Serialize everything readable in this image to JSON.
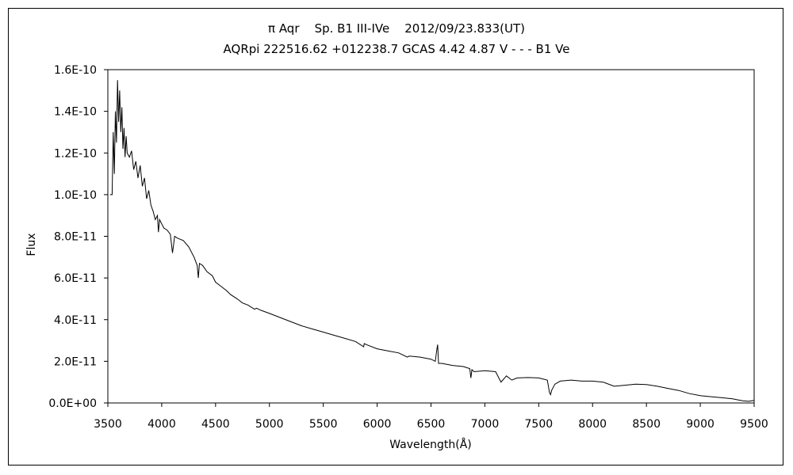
{
  "chart_data": {
    "type": "line",
    "title": "π Aqr    Sp. B1 III-IVe    2012/09/23.833(UT)",
    "subtitle": "AQRpi 222516.62 +012238.7 GCAS 4.42 4.87 V - - - B1 Ve",
    "xlabel": "Wavelength(Å)",
    "ylabel": "Flux",
    "xlim": [
      3500,
      9500
    ],
    "ylim": [
      0,
      1.6e-10
    ],
    "x_ticks": [
      "3500",
      "4000",
      "4500",
      "5000",
      "5500",
      "6000",
      "6500",
      "7000",
      "7500",
      "8000",
      "8500",
      "9000",
      "9500"
    ],
    "y_ticks": [
      "0.0E+00",
      "2.0E-11",
      "4.0E-11",
      "6.0E-11",
      "8.0E-11",
      "1.0E-10",
      "1.2E-10",
      "1.4E-10",
      "1.6E-10"
    ],
    "grid": false,
    "legend": "none",
    "line_color": "#000000",
    "series": [
      {
        "x": [
          3520,
          3540,
          3550,
          3560,
          3570,
          3580,
          3590,
          3600,
          3610,
          3620,
          3630,
          3640,
          3650,
          3660,
          3670,
          3680,
          3700,
          3720,
          3740,
          3760,
          3780,
          3800,
          3820,
          3840,
          3860,
          3880,
          3900,
          3920,
          3940,
          3960,
          3970,
          3980,
          4000,
          4020,
          4050,
          4080,
          4100,
          4110,
          4120,
          4150,
          4200,
          4250,
          4300,
          4330,
          4340,
          4350,
          4380,
          4420,
          4471,
          4500,
          4550,
          4600,
          4640,
          4700,
          4750,
          4800,
          4861,
          4880,
          4920,
          5000,
          5100,
          5200,
          5300,
          5400,
          5500,
          5600,
          5700,
          5800,
          5875,
          5880,
          5900,
          6000,
          6100,
          6200,
          6280,
          6300,
          6400,
          6500,
          6540,
          6555,
          6562,
          6570,
          6600,
          6700,
          6800,
          6860,
          6870,
          6880,
          6900,
          7000,
          7100,
          7150,
          7200,
          7250,
          7300,
          7400,
          7500,
          7580,
          7600,
          7610,
          7620,
          7650,
          7700,
          7800,
          7900,
          8000,
          8100,
          8200,
          8300,
          8400,
          8500,
          8600,
          8700,
          8800,
          8900,
          9000,
          9100,
          9200,
          9300,
          9350,
          9400,
          9450,
          9500
        ],
        "y": [
          1e-10,
          1e-10,
          1.3e-10,
          1.1e-10,
          1.4e-10,
          1.25e-10,
          1.55e-10,
          1.35e-10,
          1.5e-10,
          1.3e-10,
          1.42e-10,
          1.22e-10,
          1.32e-10,
          1.18e-10,
          1.28e-10,
          1.2e-10,
          1.18e-10,
          1.21e-10,
          1.12e-10,
          1.16e-10,
          1.08e-10,
          1.14e-10,
          1.04e-10,
          1.08e-10,
          9.8e-11,
          1.02e-10,
          9.5e-11,
          9.2e-11,
          8.8e-11,
          9e-11,
          8.2e-11,
          8.8e-11,
          8.6e-11,
          8.4e-11,
          8.3e-11,
          8.1e-11,
          7.2e-11,
          7.6e-11,
          8e-11,
          7.9e-11,
          7.8e-11,
          7.5e-11,
          7e-11,
          6.6e-11,
          6e-11,
          6.7e-11,
          6.6e-11,
          6.3e-11,
          6.1e-11,
          5.8e-11,
          5.6e-11,
          5.4e-11,
          5.2e-11,
          5e-11,
          4.8e-11,
          4.7e-11,
          4.5e-11,
          4.55e-11,
          4.45e-11,
          4.3e-11,
          4.1e-11,
          3.9e-11,
          3.7e-11,
          3.55e-11,
          3.4e-11,
          3.25e-11,
          3.1e-11,
          2.95e-11,
          2.7e-11,
          2.85e-11,
          2.8e-11,
          2.6e-11,
          2.5e-11,
          2.4e-11,
          2.2e-11,
          2.25e-11,
          2.2e-11,
          2.1e-11,
          2e-11,
          2.6e-11,
          2.8e-11,
          1.9e-11,
          1.9e-11,
          1.8e-11,
          1.75e-11,
          1.65e-11,
          1.2e-11,
          1.6e-11,
          1.5e-11,
          1.55e-11,
          1.5e-11,
          1e-11,
          1.3e-11,
          1.1e-11,
          1.2e-11,
          1.22e-11,
          1.2e-11,
          1.1e-11,
          5e-12,
          4e-12,
          6e-12,
          9e-12,
          1.05e-11,
          1.1e-11,
          1.05e-11,
          1.05e-11,
          1e-11,
          8e-12,
          8.5e-12,
          9e-12,
          8.8e-12,
          8e-12,
          7e-12,
          6e-12,
          4.5e-12,
          3.5e-12,
          3e-12,
          2.5e-12,
          2e-12,
          1.5e-12,
          1e-12,
          8e-13,
          1.2e-12
        ]
      }
    ]
  }
}
